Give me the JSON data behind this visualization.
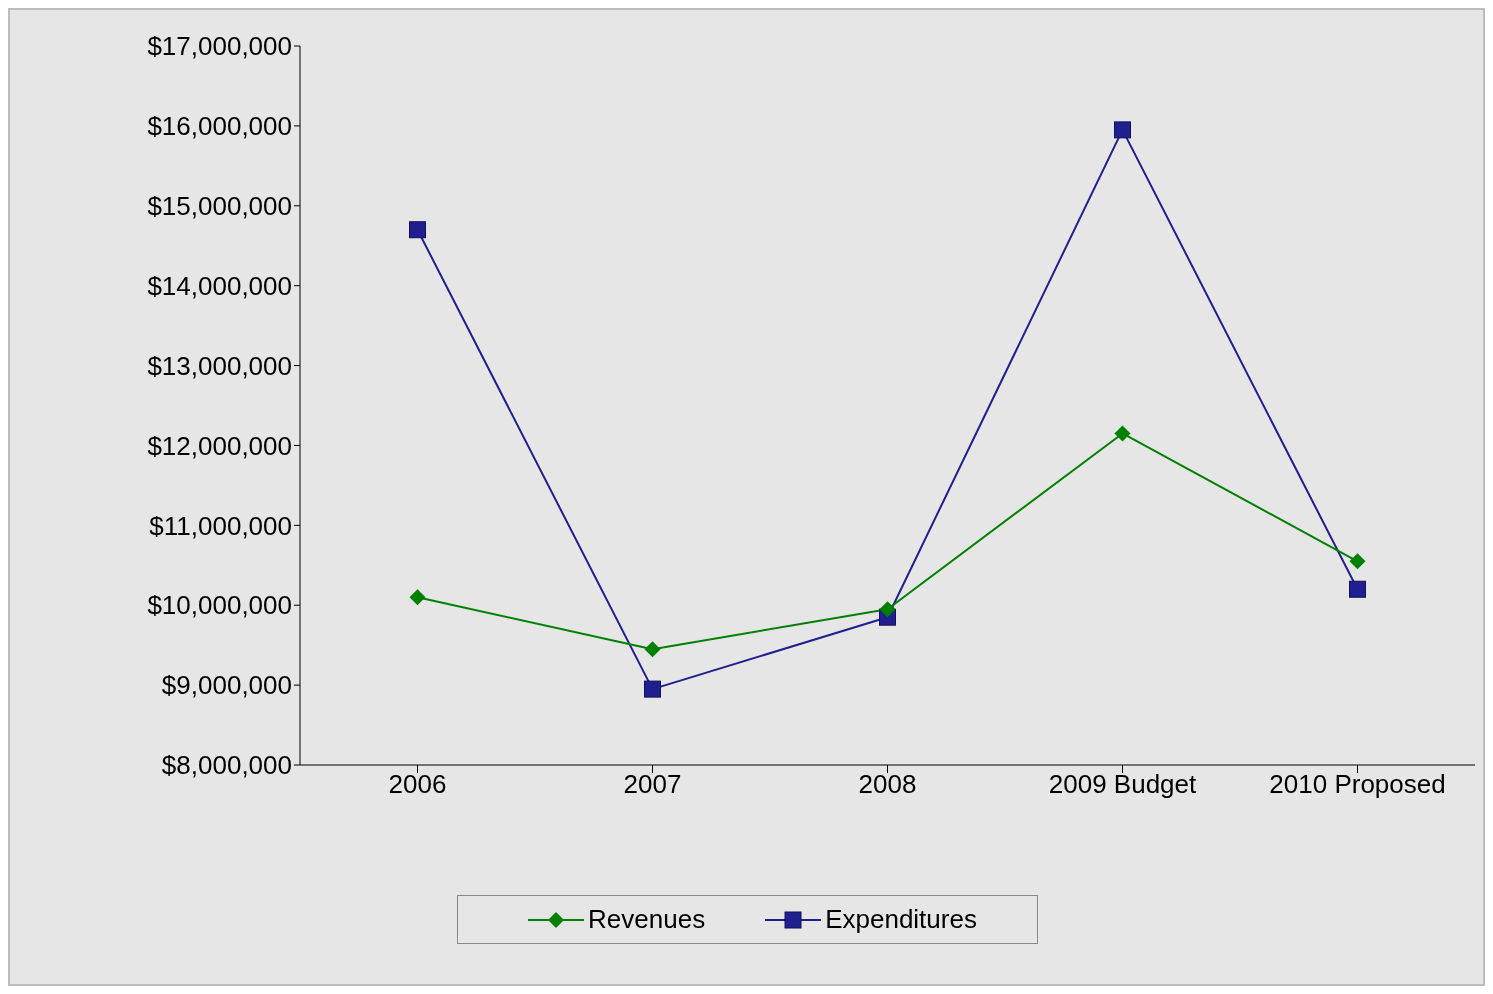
{
  "chart_data": {
    "type": "line",
    "categories": [
      "2006",
      "2007",
      "2008",
      "2009 Budget",
      "2010 Proposed"
    ],
    "series": [
      {
        "name": "Revenues",
        "color": "#008000",
        "marker": "diamond",
        "values": [
          10100000,
          9450000,
          9950000,
          12150000,
          10550000
        ]
      },
      {
        "name": "Expenditures",
        "color": "#1f1f8f",
        "marker": "square",
        "values": [
          14700000,
          8950000,
          9850000,
          15950000,
          10200000
        ]
      }
    ],
    "ylim": [
      8000000,
      17000000
    ],
    "yticks": [
      {
        "value": 8000000,
        "label": "$8,000,000"
      },
      {
        "value": 9000000,
        "label": "$9,000,000"
      },
      {
        "value": 10000000,
        "label": "$10,000,000"
      },
      {
        "value": 11000000,
        "label": "$11,000,000"
      },
      {
        "value": 12000000,
        "label": "$12,000,000"
      },
      {
        "value": 13000000,
        "label": "$13,000,000"
      },
      {
        "value": 14000000,
        "label": "$14,000,000"
      },
      {
        "value": 15000000,
        "label": "$15,000,000"
      },
      {
        "value": 16000000,
        "label": "$16,000,000"
      },
      {
        "value": 17000000,
        "label": "$17,000,000"
      }
    ],
    "grid": false,
    "legend": "bottom",
    "line_style": "solid"
  }
}
